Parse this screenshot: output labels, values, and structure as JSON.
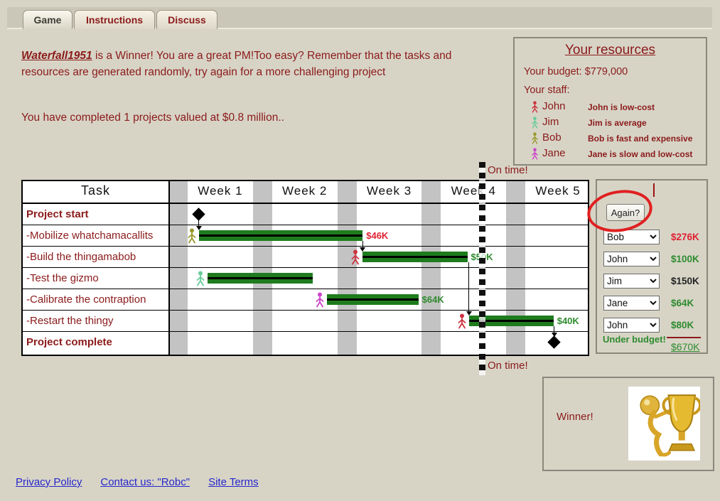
{
  "tabs": [
    {
      "label": "Game",
      "active": true
    },
    {
      "label": "Instructions",
      "active": false
    },
    {
      "label": "Discuss",
      "active": false
    }
  ],
  "message": {
    "project_name": "Waterfall1951",
    "line1_rest": " is a Winner! You are a great PM!Too easy? Remember that the tasks and resources are generated randomly, try again for a more challenging project",
    "line2": "You have completed 1 projects valued at $0.8 million.."
  },
  "resources": {
    "title": "Your resources",
    "budget": "Your budget: $779,000",
    "staff_label": "Your staff:",
    "staff": [
      {
        "name": "John",
        "desc": "John is low-cost",
        "color": "#cc3340"
      },
      {
        "name": "Jim",
        "desc": "Jim is average",
        "color": "#66cc99"
      },
      {
        "name": "Bob",
        "desc": "Bob is fast and expensive",
        "color": "#99992b"
      },
      {
        "name": "Jane",
        "desc": "Jane is slow and low-cost",
        "color": "#cc44cc"
      }
    ]
  },
  "gantt": {
    "task_header": "Task",
    "weeks": [
      "Week 1",
      "Week 2",
      "Week 3",
      "Week 4",
      "Week 5"
    ],
    "rows": [
      {
        "task": "Project start",
        "bold": true,
        "milestone_week": 0.36
      },
      {
        "task": "-Mobilize whatchamacallits",
        "bold": false,
        "worker": "Bob",
        "bar": {
          "start": 0.36,
          "end": 2.3
        },
        "label": "$46K",
        "label_color": "#e02030"
      },
      {
        "task": "-Build the thingamabob",
        "bold": false,
        "worker": "John",
        "bar": {
          "start": 2.3,
          "end": 3.54
        },
        "label": "$50K",
        "label_color": "#2e8b2e"
      },
      {
        "task": "-Test the gizmo",
        "bold": false,
        "worker": "Jim",
        "bar": {
          "start": 0.46,
          "end": 1.71
        }
      },
      {
        "task": "-Calibrate the contraption",
        "bold": false,
        "worker": "Jane",
        "bar": {
          "start": 1.88,
          "end": 2.96
        },
        "label": "$64K",
        "label_color": "#2e8b2e"
      },
      {
        "task": "-Restart the thingy",
        "bold": false,
        "worker": "John",
        "bar": {
          "start": 3.56,
          "end": 4.56
        },
        "label": "$40K",
        "label_color": "#2e8b2e"
      },
      {
        "task": "Project complete",
        "bold": true,
        "milestone_week": 4.57
      }
    ],
    "connectors": [
      {
        "week": 0.36,
        "from_row": 0,
        "to_row": 1
      },
      {
        "week": 2.3,
        "from_row": 1,
        "to_row": 2
      },
      {
        "week": 3.56,
        "from_row": 2,
        "to_row": 5
      },
      {
        "week": 4.57,
        "from_row": 5,
        "to_row": 6
      }
    ],
    "today_week": 3.73,
    "bar_color": "#1e7c1e"
  },
  "status": {
    "on_time_top": "On time!",
    "on_time_bottom": "On time!"
  },
  "staffing": {
    "again_label": "Again?",
    "assignments": [
      {
        "selected": "Bob",
        "cost": "$276K",
        "cost_color": "#e02030"
      },
      {
        "selected": "John",
        "cost": "$100K",
        "cost_color": "#2e8b2e"
      },
      {
        "selected": "Jim",
        "cost": "$150K",
        "cost_color": "#222222"
      },
      {
        "selected": "Jane",
        "cost": "$64K",
        "cost_color": "#2e8b2e"
      },
      {
        "selected": "John",
        "cost": "$80K",
        "cost_color": "#2e8b2e"
      }
    ],
    "under_budget_label": "Under budget!",
    "total": "$670K"
  },
  "winner": {
    "label": "Winner!"
  },
  "footer": {
    "links": [
      "Privacy Policy",
      "Contact us: \"Robc\"",
      "Site Terms"
    ]
  },
  "colors": {
    "dark_red_text": "#8b1a1a",
    "annotation_red": "#e02020",
    "link_blue": "#2626cc",
    "stripe_gray": "#c3c3c3"
  }
}
